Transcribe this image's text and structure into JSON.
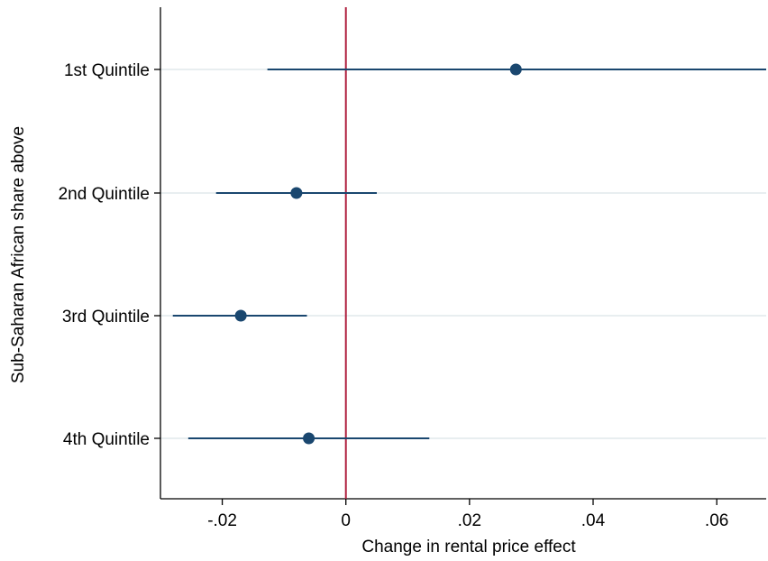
{
  "chart_data": {
    "type": "scatter",
    "style": "coefficient-plot-horizontal",
    "xlabel": "Change in rental price effect",
    "ylabel": "Sub-Saharan African share above",
    "xlim": [
      -0.03,
      0.068
    ],
    "x_ticks": [
      {
        "value": -0.02,
        "label": "-.02"
      },
      {
        "value": 0,
        "label": "0"
      },
      {
        "value": 0.02,
        "label": ".02"
      },
      {
        "value": 0.04,
        "label": ".04"
      },
      {
        "value": 0.06,
        "label": ".06"
      }
    ],
    "categories": [
      "1st Quintile",
      "2nd Quintile",
      "3rd Quintile",
      "4th Quintile"
    ],
    "series": [
      {
        "estimates": [
          0.0275,
          -0.008,
          -0.017,
          -0.006
        ],
        "ci_low": [
          -0.0127,
          -0.021,
          -0.028,
          -0.0255
        ],
        "ci_high": [
          0.068,
          0.005,
          -0.0063,
          0.0135
        ]
      }
    ],
    "reference_line": {
      "x": 0,
      "color": "#b0203f"
    },
    "colors": {
      "marker": "#1a476f",
      "gridline": "#e8eef0",
      "axis": "#000000"
    },
    "grid": true
  }
}
